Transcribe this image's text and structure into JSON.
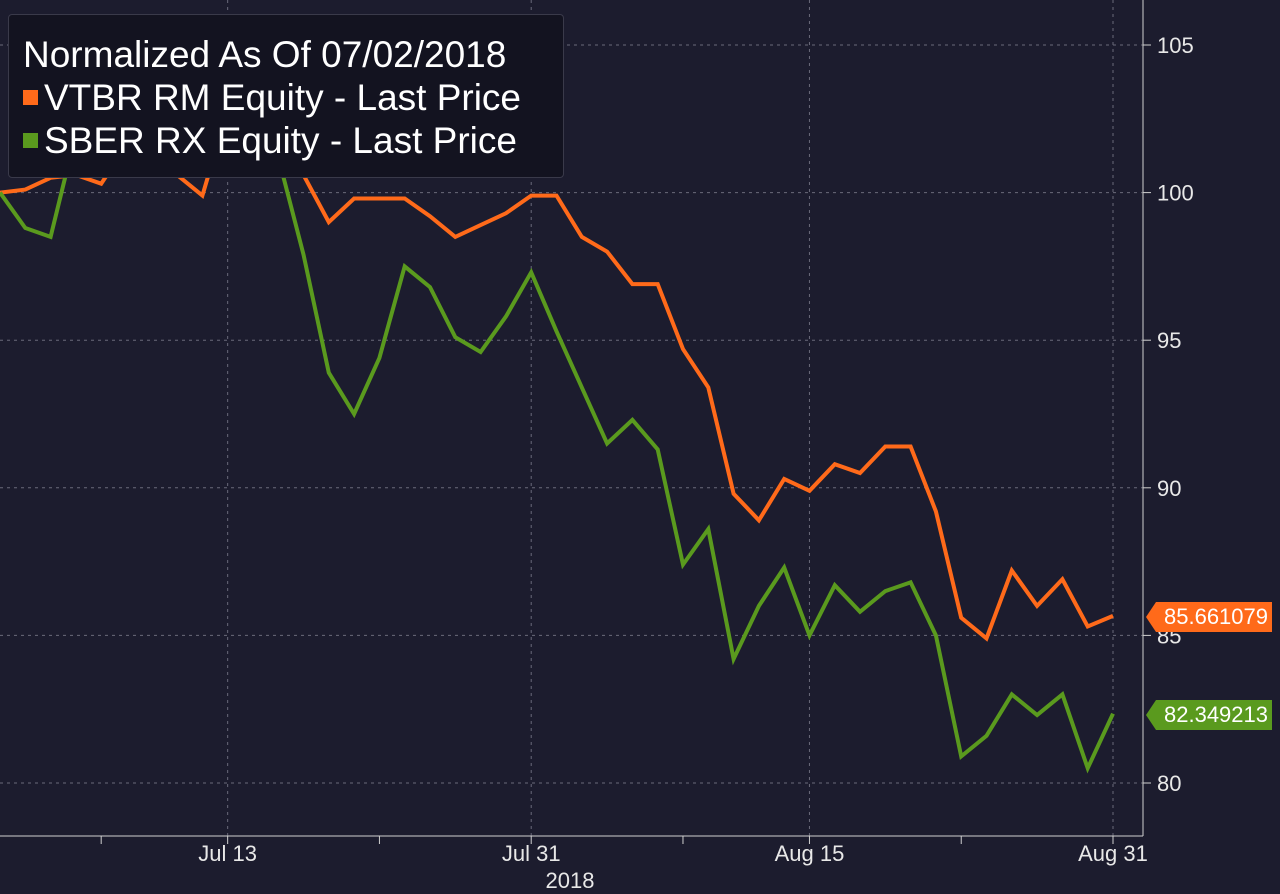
{
  "chart_data": {
    "type": "line",
    "title": "Normalized As Of 07/02/2018",
    "xlabel": "2018",
    "ylabel": "",
    "ylim": [
      78,
      106.5
    ],
    "yticks": [
      80,
      85,
      90,
      95,
      100,
      105
    ],
    "xticks": [
      {
        "i": 9,
        "label": "Jul 13"
      },
      {
        "i": 21,
        "label": "Jul 31"
      },
      {
        "i": 32,
        "label": "Aug 15"
      },
      {
        "i": 44,
        "label": "Aug 31"
      }
    ],
    "xminor_ticks": [
      4,
      15,
      27,
      38
    ],
    "grid": true,
    "legend_position": "top-left",
    "series": [
      {
        "name": "VTBR RM Equity - Last Price",
        "color": "#ff6a1a",
        "last_value_label": "85.661079",
        "values": [
          100.0,
          100.1,
          100.5,
          100.6,
          100.3,
          101.6,
          101.5,
          100.6,
          99.9,
          102.8,
          102.3,
          101.1,
          100.6,
          99.0,
          99.8,
          99.8,
          99.8,
          99.2,
          98.5,
          98.9,
          99.3,
          99.9,
          99.9,
          98.5,
          98.0,
          96.9,
          96.9,
          94.7,
          93.4,
          89.8,
          88.9,
          90.3,
          89.9,
          90.8,
          90.5,
          91.4,
          91.4,
          89.2,
          85.6,
          84.9,
          87.2,
          86.0,
          86.9,
          85.3,
          85.661079
        ]
      },
      {
        "name": "SBER RX Equity - Last Price",
        "color": "#5a9a1e",
        "last_value_label": "82.349213",
        "values": [
          100.0,
          98.8,
          98.5,
          102.0,
          102.6,
          104.1,
          104.2,
          103.2,
          102.5,
          104.1,
          103.3,
          101.2,
          97.9,
          93.9,
          92.5,
          94.4,
          97.5,
          96.8,
          95.1,
          94.6,
          95.8,
          97.3,
          95.3,
          93.4,
          91.5,
          92.3,
          91.3,
          87.4,
          88.6,
          84.2,
          86.0,
          87.3,
          85.0,
          86.7,
          85.8,
          86.5,
          86.8,
          85.0,
          80.9,
          81.6,
          83.0,
          82.3,
          83.0,
          80.5,
          82.349213
        ]
      }
    ]
  }
}
